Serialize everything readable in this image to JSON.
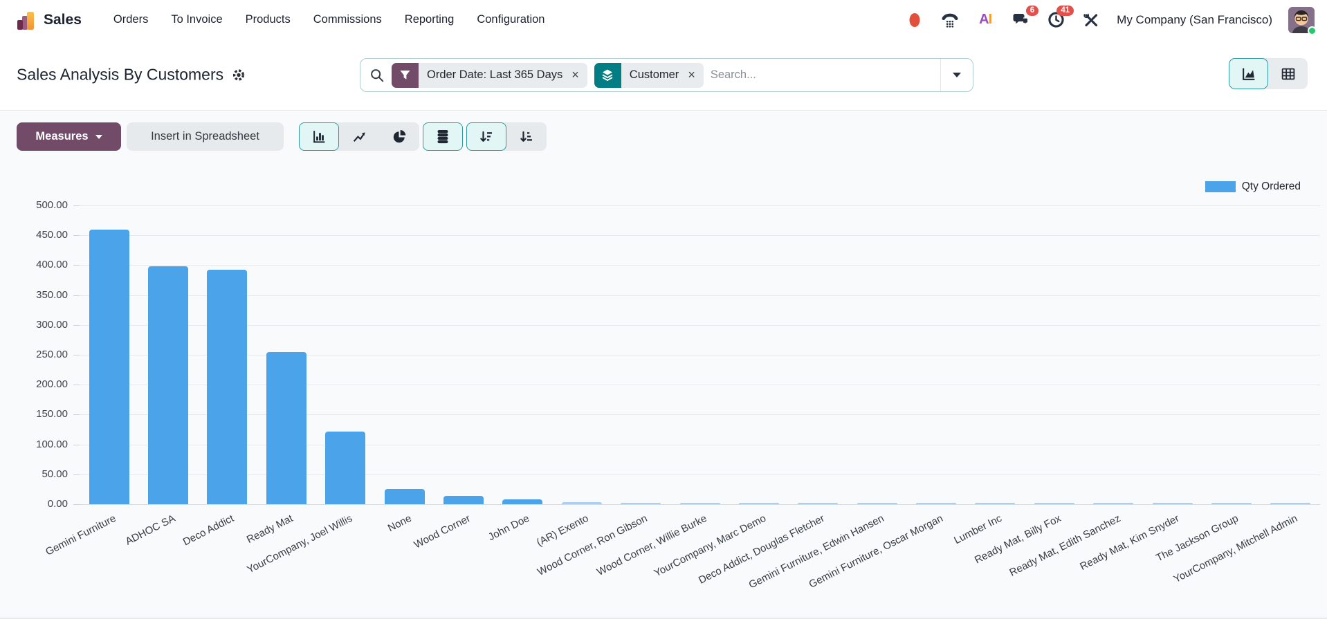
{
  "app": {
    "name": "Sales"
  },
  "nav": {
    "items": [
      {
        "label": "Orders"
      },
      {
        "label": "To Invoice"
      },
      {
        "label": "Products"
      },
      {
        "label": "Commissions"
      },
      {
        "label": "Reporting"
      },
      {
        "label": "Configuration"
      }
    ]
  },
  "topbar": {
    "ai_label_a": "A",
    "ai_label_i": "I",
    "messages_badge": "6",
    "activities_badge": "41",
    "company": "My Company (San Francisco)"
  },
  "page": {
    "title": "Sales Analysis By Customers"
  },
  "search": {
    "placeholder": "Search...",
    "facets": [
      {
        "kind": "filter",
        "label": "Order Date: Last 365 Days"
      },
      {
        "kind": "groupby",
        "label": "Customer"
      }
    ],
    "close_glyph": "×"
  },
  "toolbar": {
    "measures": "Measures",
    "insert_spreadsheet": "Insert in Spreadsheet"
  },
  "colors": {
    "primary_purple": "#714B67",
    "accent_teal": "#017e84",
    "bar_blue": "#4ba3ea",
    "bar_blue_faint": "#abcfec",
    "badge_red": "#e1504a"
  },
  "chart_data": {
    "type": "bar",
    "title": "Sales Analysis By Customers",
    "xlabel": "",
    "ylabel": "",
    "ylim": [
      0,
      500
    ],
    "ytick_step": 50,
    "grid": true,
    "legend_position": "top-right",
    "legend": [
      {
        "name": "Qty Ordered",
        "color": "#4ba3ea"
      }
    ],
    "categories": [
      "Gemini Furniture",
      "ADHOC SA",
      "Deco Addict",
      "Ready Mat",
      "YourCompany, Joel Willis",
      "None",
      "Wood Corner",
      "John Doe",
      "(AR) Exento",
      "Wood Corner, Ron Gibson",
      "Wood Corner, Willie Burke",
      "YourCompany, Marc Demo",
      "Deco Addict, Douglas Fletcher",
      "Gemini Furniture, Edwin Hansen",
      "Gemini Furniture, Oscar Morgan",
      "Lumber Inc",
      "Ready Mat, Billy Fox",
      "Ready Mat, Edith Sanchez",
      "Ready Mat, Kim Snyder",
      "The Jackson Group",
      "YourCompany, Mitchell Admin"
    ],
    "series": [
      {
        "name": "Qty Ordered",
        "values": [
          460,
          398,
          392,
          255,
          121,
          26,
          14,
          8,
          3,
          2.5,
          2.5,
          2.5,
          2.5,
          2,
          2,
          1.5,
          1.5,
          1.5,
          1.5,
          1.5,
          1.5
        ]
      }
    ]
  }
}
